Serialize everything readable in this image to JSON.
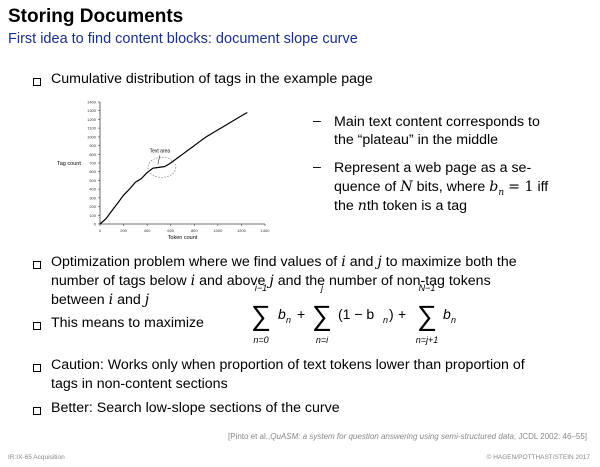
{
  "slide": {
    "title": "Storing Documents",
    "subtitle": "First idea to find content blocks: document slope curve"
  },
  "bullets": {
    "b1": "Cumulative distribution of tags in the example page",
    "b2_line1": "Optimization problem where we find values of",
    "b2_i": "i",
    "b2_and": "and",
    "b2_j": "j",
    "b2_rest1": "to maximize both the",
    "b2_line2_a": "number of tags below",
    "b2_line2_b": "and above",
    "b2_line2_c": "and the number of non-tag tokens",
    "b2_line3": "between",
    "b3": "This means to maximize",
    "b4_line1": "Caution: Works only when proportion of text tokens lower than proportion of",
    "b4_line2": "tags in non-content sections",
    "b5": "Better: Search low-slope sections of the curve"
  },
  "side_notes": {
    "dash": "–",
    "n1_line1": "Main text content corresponds to",
    "n1_line2": "the “plateau” in the middle",
    "n2_line1": "Represent a web page as a se-",
    "n2_line2a": "quence of",
    "n2_N": "N",
    "n2_line2b": "bits, where",
    "n2_eq": "= 1",
    "n2_iff": "iff",
    "n2_line3a": "the",
    "n2_n": "n",
    "n2_line3b": "th token is a tag"
  },
  "formula": {
    "sum1_upper": "i−1",
    "sum1_lower": "n=0",
    "sum2_upper": "j",
    "sum2_lower": "n=i",
    "sum3_upper": "N−1",
    "sum3_lower": "n=j+1",
    "term1": "b",
    "term2": "(1 − b",
    "sub": "n",
    "plus": "+"
  },
  "chart_data": {
    "type": "line",
    "ylabel": "Tag count",
    "xlabel": "Token count",
    "annotation": "Text area",
    "x_ticks": [
      "0",
      "200",
      "400",
      "600",
      "800",
      "1000",
      "1200",
      "1400"
    ],
    "y_ticks": [
      "0",
      "100",
      "200",
      "300",
      "400",
      "500",
      "600",
      "700",
      "800",
      "900",
      "1000",
      "1100",
      "1200",
      "1300",
      "1400"
    ],
    "xlim": [
      0,
      1400
    ],
    "ylim": [
      0,
      1400
    ],
    "series": [
      {
        "x": [
          0,
          50,
          100,
          150,
          200,
          250,
          300,
          350,
          400,
          450,
          500,
          550,
          600,
          650,
          700,
          750,
          800,
          850,
          900,
          950,
          1000,
          1050,
          1100,
          1150,
          1200,
          1250
        ],
        "values": [
          0,
          60,
          150,
          240,
          330,
          400,
          480,
          520,
          590,
          640,
          650,
          660,
          700,
          750,
          800,
          850,
          900,
          950,
          1000,
          1040,
          1080,
          1120,
          1160,
          1200,
          1240,
          1280
        ]
      }
    ]
  },
  "footer": {
    "citation_pre": "[Pinto et al.,",
    "citation_italic": "QuASM: a system for question answering using semi-structured data",
    "citation_post": ", JCDL 2002: 46–55]",
    "left": "IR:IX-65   Acquisition",
    "right": "© HAGEN/POTTHAST/STEIN 2017"
  }
}
